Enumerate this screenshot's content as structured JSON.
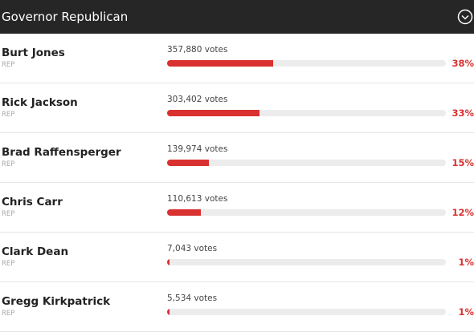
{
  "header": {
    "title": "Governor Republican"
  },
  "candidates": [
    {
      "name": "Burt Jones",
      "party": "REP",
      "votes": "357,880 votes",
      "percent": {
        "value": 38,
        "label": "38%"
      }
    },
    {
      "name": "Rick Jackson",
      "party": "REP",
      "votes": "303,402 votes",
      "percent": {
        "value": 33,
        "label": "33%"
      }
    },
    {
      "name": "Brad Raffensperger",
      "party": "REP",
      "votes": "139,974 votes",
      "percent": {
        "value": 15,
        "label": "15%"
      }
    },
    {
      "name": "Chris Carr",
      "party": "REP",
      "votes": "110,613 votes",
      "percent": {
        "value": 12,
        "label": "12%"
      }
    },
    {
      "name": "Clark Dean",
      "party": "REP",
      "votes": "7,043 votes",
      "percent": {
        "value": 1,
        "label": "1%"
      }
    },
    {
      "name": "Gregg Kirkpatrick",
      "party": "REP",
      "votes": "5,534 votes",
      "percent": {
        "value": 1,
        "label": "1%"
      }
    }
  ]
}
